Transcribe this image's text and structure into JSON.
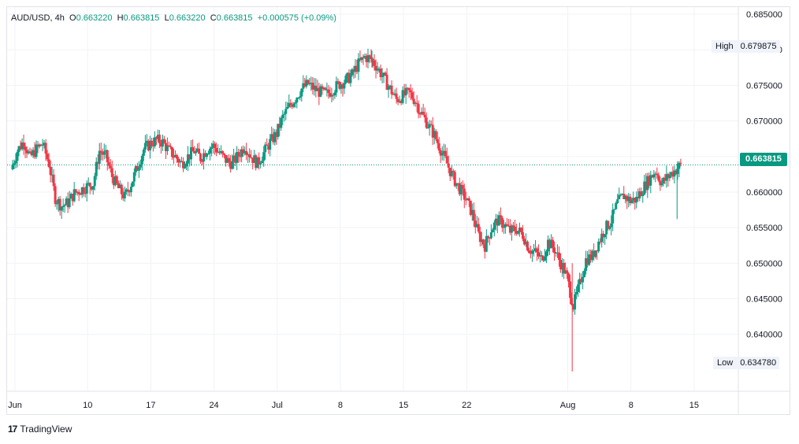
{
  "legend": {
    "symbol": "AUD/USD",
    "interval": "4h",
    "o_label": "O",
    "o_value": "0.663220",
    "h_label": "H",
    "h_value": "0.663815",
    "l_label": "L",
    "l_value": "0.663220",
    "c_label": "C",
    "c_value": "0.663815",
    "change": "+0.000575 (+0.09%)"
  },
  "markers": {
    "high_label": "High",
    "high_value": "0.679875",
    "low_label": "Low",
    "low_value": "0.634780",
    "last_value": "0.663815"
  },
  "brand": {
    "logo": "17",
    "name": "TradingView"
  },
  "colors": {
    "up": "#089981",
    "down": "#f23645",
    "grid": "#f0f3fa",
    "text": "#131722"
  },
  "chart_data": {
    "type": "candlestick",
    "symbol": "AUD/USD",
    "interval": "4h",
    "ylim": [
      0.632,
      0.686
    ],
    "y_ticks": [
      "0.685000",
      "0.680000",
      "0.675000",
      "0.670000",
      "0.665000",
      "0.660000",
      "0.655000",
      "0.650000",
      "0.645000",
      "0.640000"
    ],
    "x_ticks": [
      {
        "label": "Jun",
        "pos": 0.5
      },
      {
        "label": "10",
        "pos": 12
      },
      {
        "label": "17",
        "pos": 22
      },
      {
        "label": "24",
        "pos": 32
      },
      {
        "label": "Jul",
        "pos": 42
      },
      {
        "label": "8",
        "pos": 52
      },
      {
        "label": "15",
        "pos": 62
      },
      {
        "label": "22",
        "pos": 72
      },
      {
        "label": "Aug",
        "pos": 88
      },
      {
        "label": "8",
        "pos": 98
      },
      {
        "label": "15",
        "pos": 108
      }
    ],
    "last_price": 0.663815,
    "high": 0.679875,
    "low": 0.63478,
    "close_path": [
      [
        0,
        0.6632
      ],
      [
        1,
        0.6658
      ],
      [
        2,
        0.6672
      ],
      [
        3,
        0.6648
      ],
      [
        4,
        0.666
      ],
      [
        5,
        0.6668
      ],
      [
        6,
        0.664
      ],
      [
        7,
        0.6592
      ],
      [
        8,
        0.658
      ],
      [
        9,
        0.6585
      ],
      [
        10,
        0.6598
      ],
      [
        11,
        0.6603
      ],
      [
        12,
        0.6608
      ],
      [
        13,
        0.6612
      ],
      [
        14,
        0.6658
      ],
      [
        15,
        0.665
      ],
      [
        16,
        0.6622
      ],
      [
        17,
        0.6605
      ],
      [
        18,
        0.6593
      ],
      [
        19,
        0.6612
      ],
      [
        20,
        0.6635
      ],
      [
        21,
        0.666
      ],
      [
        22,
        0.6668
      ],
      [
        23,
        0.6673
      ],
      [
        24,
        0.667
      ],
      [
        25,
        0.6658
      ],
      [
        26,
        0.665
      ],
      [
        27,
        0.664
      ],
      [
        28,
        0.665
      ],
      [
        29,
        0.6658
      ],
      [
        30,
        0.6648
      ],
      [
        31,
        0.666
      ],
      [
        32,
        0.6665
      ],
      [
        33,
        0.6655
      ],
      [
        34,
        0.6645
      ],
      [
        35,
        0.664
      ],
      [
        36,
        0.6652
      ],
      [
        37,
        0.6665
      ],
      [
        38,
        0.665
      ],
      [
        39,
        0.664
      ],
      [
        40,
        0.6655
      ],
      [
        41,
        0.667
      ],
      [
        42,
        0.6682
      ],
      [
        43,
        0.6705
      ],
      [
        44,
        0.672
      ],
      [
        45,
        0.6732
      ],
      [
        46,
        0.6745
      ],
      [
        47,
        0.6752
      ],
      [
        48,
        0.6745
      ],
      [
        49,
        0.674
      ],
      [
        50,
        0.6738
      ],
      [
        51,
        0.6745
      ],
      [
        52,
        0.6752
      ],
      [
        53,
        0.6757
      ],
      [
        54,
        0.6765
      ],
      [
        55,
        0.678
      ],
      [
        56,
        0.679
      ],
      [
        57,
        0.6787
      ],
      [
        58,
        0.6775
      ],
      [
        59,
        0.676
      ],
      [
        60,
        0.6745
      ],
      [
        61,
        0.673
      ],
      [
        62,
        0.6735
      ],
      [
        63,
        0.674
      ],
      [
        64,
        0.6728
      ],
      [
        65,
        0.671
      ],
      [
        66,
        0.6695
      ],
      [
        67,
        0.668
      ],
      [
        68,
        0.666
      ],
      [
        69,
        0.664
      ],
      [
        70,
        0.662
      ],
      [
        71,
        0.6605
      ],
      [
        72,
        0.659
      ],
      [
        73,
        0.657
      ],
      [
        74,
        0.654
      ],
      [
        75,
        0.6525
      ],
      [
        76,
        0.6548
      ],
      [
        77,
        0.656
      ],
      [
        78,
        0.6555
      ],
      [
        79,
        0.6545
      ],
      [
        80,
        0.6548
      ],
      [
        81,
        0.654
      ],
      [
        82,
        0.652
      ],
      [
        83,
        0.6515
      ],
      [
        84,
        0.6505
      ],
      [
        85,
        0.653
      ],
      [
        86,
        0.652
      ],
      [
        87,
        0.65
      ],
      [
        88,
        0.648
      ],
      [
        89,
        0.644
      ],
      [
        90,
        0.647
      ],
      [
        91,
        0.6505
      ],
      [
        92,
        0.651
      ],
      [
        93,
        0.653
      ],
      [
        94,
        0.6548
      ],
      [
        95,
        0.656
      ],
      [
        96,
        0.6585
      ],
      [
        97,
        0.6595
      ],
      [
        98,
        0.6588
      ],
      [
        99,
        0.659
      ],
      [
        100,
        0.6605
      ],
      [
        101,
        0.6618
      ],
      [
        102,
        0.663
      ],
      [
        103,
        0.6612
      ],
      [
        104,
        0.6622
      ],
      [
        105,
        0.663
      ],
      [
        106,
        0.6638
      ]
    ]
  }
}
